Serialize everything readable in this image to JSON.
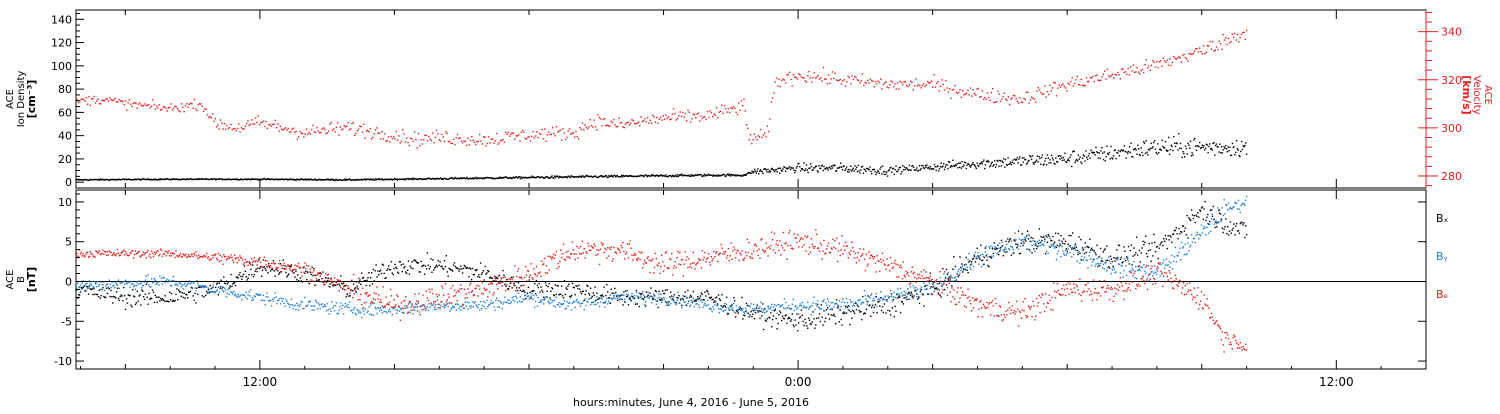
{
  "colors": {
    "black": "#000000",
    "red": "#e0201b",
    "blue": "#1f7fd6"
  },
  "chart_data": [
    {
      "id": "ion-density-velocity",
      "type": "scatter",
      "title": "",
      "xlabel": "hours:minutes, June  4, 2016 - June  5, 2016",
      "x_tick_labels": [
        "12:00",
        "0:00",
        "12:00"
      ],
      "x_tick_hours": [
        12,
        24,
        36
      ],
      "xlim_hours": [
        7.9,
        38.0
      ],
      "ylabel_left_lines": [
        "ACE",
        "Ion Density",
        "[cm⁻³]"
      ],
      "ylim_left": [
        -5,
        148
      ],
      "y_ticks_left": [
        0,
        20,
        40,
        60,
        80,
        100,
        120,
        140
      ],
      "ylabel_right_lines": [
        "ACE",
        "Velocity",
        "[km/s]"
      ],
      "ylim_right": [
        275,
        349
      ],
      "y_ticks_right": [
        280,
        300,
        320,
        340
      ],
      "series": [
        {
          "name": "",
          "color_key": "black",
          "axis": "left",
          "anchors": [
            [
              7.9,
              2
            ],
            [
              10,
              2.5
            ],
            [
              12,
              2.5
            ],
            [
              14,
              2
            ],
            [
              16,
              3
            ],
            [
              18,
              4
            ],
            [
              20,
              5
            ],
            [
              22,
              6
            ],
            [
              22.8,
              6
            ],
            [
              23,
              9
            ],
            [
              24,
              12
            ],
            [
              25,
              12
            ],
            [
              26,
              10
            ],
            [
              27,
              13
            ],
            [
              28,
              16
            ],
            [
              29,
              18
            ],
            [
              30,
              20
            ],
            [
              31,
              25
            ],
            [
              32,
              30
            ],
            [
              33,
              30
            ],
            [
              34,
              30
            ]
          ],
          "noise": [
            0.5,
            0.5,
            0.6,
            0.6,
            0.8,
            1,
            1,
            1,
            1,
            3,
            4,
            4,
            3,
            4,
            5,
            6,
            7,
            8,
            9,
            8,
            7
          ]
        },
        {
          "name": "",
          "color_key": "red",
          "axis": "right",
          "anchors": [
            [
              7.9,
              311
            ],
            [
              8.5,
              312
            ],
            [
              9,
              310
            ],
            [
              10,
              308
            ],
            [
              10.7,
              310
            ],
            [
              11,
              302
            ],
            [
              11.5,
              300
            ],
            [
              12,
              302
            ],
            [
              13,
              298
            ],
            [
              14,
              300
            ],
            [
              15,
              297
            ],
            [
              15.5,
              295
            ],
            [
              16,
              296
            ],
            [
              17,
              295
            ],
            [
              18,
              297
            ],
            [
              19,
              298
            ],
            [
              19.5,
              303
            ],
            [
              20,
              301
            ],
            [
              21,
              304
            ],
            [
              22,
              305
            ],
            [
              22.8,
              309
            ],
            [
              22.9,
              296
            ],
            [
              23.3,
              296
            ],
            [
              23.5,
              319
            ],
            [
              24,
              322
            ],
            [
              25,
              320
            ],
            [
              26,
              318
            ],
            [
              27,
              318
            ],
            [
              28,
              314
            ],
            [
              29,
              312
            ],
            [
              30,
              318
            ],
            [
              31,
              322
            ],
            [
              32,
              326
            ],
            [
              33,
              332
            ],
            [
              34,
              340
            ]
          ],
          "noise": [
            2,
            2,
            2,
            2,
            2,
            3,
            3,
            3,
            3,
            3,
            3,
            3,
            3,
            3,
            3,
            3,
            3,
            3,
            3,
            3,
            3,
            3,
            3,
            3,
            3,
            3,
            3,
            3,
            3,
            3,
            3,
            3,
            3,
            3,
            3
          ]
        }
      ]
    },
    {
      "id": "magnetic-field",
      "type": "scatter",
      "title": "",
      "xlabel": "hours:minutes, June  4, 2016 - June  5, 2016",
      "xlim_hours": [
        7.9,
        38.0
      ],
      "ylabel_lines": [
        "ACE",
        "B",
        "[nT]"
      ],
      "ylim": [
        -11,
        11.5
      ],
      "y_ticks": [
        -10,
        -5,
        0,
        5,
        10
      ],
      "zero_line": true,
      "legend_position": "right",
      "series": [
        {
          "name": "Bₓ",
          "color_key": "black",
          "anchors": [
            [
              7.9,
              -1
            ],
            [
              9,
              -2
            ],
            [
              10,
              -2
            ],
            [
              11,
              -1
            ],
            [
              12,
              2
            ],
            [
              13,
              1
            ],
            [
              14,
              -1
            ],
            [
              15,
              2
            ],
            [
              16,
              2
            ],
            [
              17,
              1
            ],
            [
              18,
              -1
            ],
            [
              19,
              -1
            ],
            [
              20,
              -2
            ],
            [
              21,
              -2
            ],
            [
              22,
              -2
            ],
            [
              23,
              -4
            ],
            [
              24,
              -5
            ],
            [
              25,
              -4
            ],
            [
              26,
              -3
            ],
            [
              27,
              -1
            ],
            [
              28,
              3
            ],
            [
              29,
              5
            ],
            [
              30,
              5
            ],
            [
              31,
              3
            ],
            [
              32,
              4
            ],
            [
              33,
              9
            ],
            [
              34,
              6
            ]
          ],
          "noise": [
            1.2,
            1.2,
            1.2,
            1.2,
            1.2,
            1.2,
            1.2,
            1.2,
            1.2,
            1.2,
            1.2,
            1.2,
            1.2,
            1.2,
            1.2,
            1.2,
            1.5,
            1.5,
            1.5,
            1.5,
            1.5,
            1.5,
            1.5,
            1.5,
            1.5,
            1.5,
            1.5
          ]
        },
        {
          "name": "Bᵧ",
          "color_key": "blue",
          "anchors": [
            [
              7.9,
              -0.5
            ],
            [
              10,
              0
            ],
            [
              11,
              -1
            ],
            [
              12,
              -2
            ],
            [
              13,
              -3
            ],
            [
              14,
              -3.5
            ],
            [
              15,
              -3.5
            ],
            [
              16,
              -3
            ],
            [
              17,
              -3
            ],
            [
              18,
              -2
            ],
            [
              19,
              -3
            ],
            [
              20,
              -2
            ],
            [
              21,
              -2
            ],
            [
              22,
              -3
            ],
            [
              23,
              -3.5
            ],
            [
              24,
              -3
            ],
            [
              25,
              -3
            ],
            [
              26,
              -2
            ],
            [
              27,
              -1
            ],
            [
              28,
              3
            ],
            [
              29,
              5
            ],
            [
              30,
              4
            ],
            [
              31,
              2
            ],
            [
              32,
              1
            ],
            [
              33,
              6
            ],
            [
              33.5,
              9
            ],
            [
              34,
              10
            ]
          ],
          "noise": [
            0.8,
            0.8,
            0.8,
            0.8,
            0.8,
            0.8,
            0.8,
            0.8,
            0.8,
            0.8,
            0.8,
            0.8,
            0.8,
            0.8,
            0.8,
            1,
            1,
            1,
            1,
            1.2,
            1.2,
            1.2,
            1.2,
            1.2,
            1.2,
            0.8,
            0.8
          ]
        },
        {
          "name": "Bₑ",
          "color_key": "red",
          "anchors": [
            [
              7.9,
              3.5
            ],
            [
              9,
              3.5
            ],
            [
              10,
              3.5
            ],
            [
              11,
              3
            ],
            [
              12,
              2.5
            ],
            [
              13,
              1.5
            ],
            [
              14,
              -1
            ],
            [
              15,
              -3
            ],
            [
              16,
              -2
            ],
            [
              17,
              -1
            ],
            [
              18,
              1
            ],
            [
              19,
              4
            ],
            [
              20,
              4
            ],
            [
              21,
              2
            ],
            [
              22,
              3
            ],
            [
              23,
              4
            ],
            [
              24,
              5
            ],
            [
              25,
              4
            ],
            [
              26,
              2
            ],
            [
              27,
              0
            ],
            [
              28,
              -3
            ],
            [
              29,
              -4
            ],
            [
              30,
              -1
            ],
            [
              31,
              -1
            ],
            [
              32,
              1
            ],
            [
              33,
              -2
            ],
            [
              33.5,
              -7
            ],
            [
              34,
              -8
            ]
          ],
          "noise": [
            0.5,
            0.5,
            0.5,
            0.8,
            0.8,
            1,
            1.5,
            1.5,
            1.5,
            1.5,
            1.5,
            1.5,
            1.5,
            1.5,
            1.5,
            1.5,
            1.5,
            1.5,
            1.5,
            1.5,
            1.5,
            1.5,
            1.5,
            1.5,
            1.5,
            1.5,
            1,
            0.8
          ]
        }
      ]
    }
  ]
}
